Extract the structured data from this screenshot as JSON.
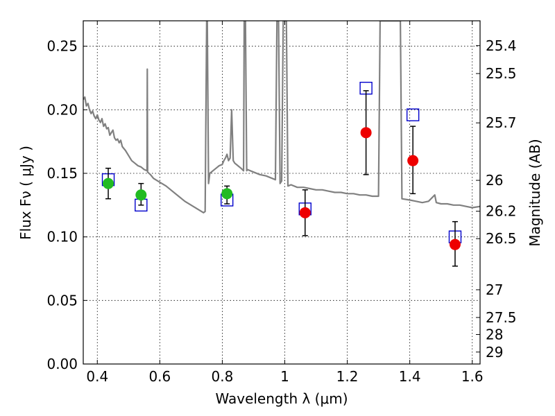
{
  "chart_data": {
    "type": "scatter",
    "title": "",
    "xlabel": "Wavelength  λ (μm)",
    "ylabel": "Flux  Fν  ( μJy )",
    "ylabel_right": "Magnitude (AB)",
    "xlim": [
      0.355,
      1.625
    ],
    "ylim": [
      0.0,
      0.27
    ],
    "grid": true,
    "x_ticks": [
      {
        "value": 0.4,
        "label": "0.4"
      },
      {
        "value": 0.6,
        "label": "0.6"
      },
      {
        "value": 0.8,
        "label": "0.8"
      },
      {
        "value": 1.0,
        "label": "1"
      },
      {
        "value": 1.2,
        "label": "1.2"
      },
      {
        "value": 1.4,
        "label": "1.4"
      },
      {
        "value": 1.6,
        "label": "1.6"
      }
    ],
    "y_ticks": [
      {
        "value": 0.0,
        "label": "0.00"
      },
      {
        "value": 0.05,
        "label": "0.05"
      },
      {
        "value": 0.1,
        "label": "0.10"
      },
      {
        "value": 0.15,
        "label": "0.15"
      },
      {
        "value": 0.2,
        "label": "0.20"
      },
      {
        "value": 0.25,
        "label": "0.25"
      }
    ],
    "right_ticks": [
      {
        "flux": 0.2505,
        "label": "25.4"
      },
      {
        "flux": 0.2285,
        "label": "25.5"
      },
      {
        "flux": 0.1897,
        "label": "25.7"
      },
      {
        "flux": 0.1445,
        "label": "26"
      },
      {
        "flux": 0.1202,
        "label": "26.2"
      },
      {
        "flux": 0.0986,
        "label": "26.5"
      },
      {
        "flux": 0.0584,
        "label": "27"
      },
      {
        "flux": 0.0366,
        "label": "27.5"
      },
      {
        "flux": 0.0232,
        "label": "28"
      },
      {
        "flux": 0.0094,
        "label": "29"
      }
    ],
    "series": [
      {
        "kind": "line",
        "color": "#808080",
        "points": [
          [
            0.355,
            0.208
          ],
          [
            0.36,
            0.21
          ],
          [
            0.365,
            0.203
          ],
          [
            0.37,
            0.205
          ],
          [
            0.375,
            0.2
          ],
          [
            0.38,
            0.197
          ],
          [
            0.385,
            0.199
          ],
          [
            0.39,
            0.195
          ],
          [
            0.395,
            0.193
          ],
          [
            0.4,
            0.196
          ],
          [
            0.405,
            0.192
          ],
          [
            0.41,
            0.19
          ],
          [
            0.415,
            0.193
          ],
          [
            0.42,
            0.187
          ],
          [
            0.425,
            0.189
          ],
          [
            0.43,
            0.185
          ],
          [
            0.435,
            0.186
          ],
          [
            0.44,
            0.18
          ],
          [
            0.445,
            0.182
          ],
          [
            0.45,
            0.184
          ],
          [
            0.455,
            0.178
          ],
          [
            0.46,
            0.176
          ],
          [
            0.465,
            0.177
          ],
          [
            0.47,
            0.174
          ],
          [
            0.475,
            0.176
          ],
          [
            0.48,
            0.171
          ],
          [
            0.49,
            0.168
          ],
          [
            0.5,
            0.164
          ],
          [
            0.51,
            0.16
          ],
          [
            0.52,
            0.158
          ],
          [
            0.53,
            0.156
          ],
          [
            0.54,
            0.155
          ],
          [
            0.55,
            0.153
          ],
          [
            0.559,
            0.152
          ],
          [
            0.56,
            0.232
          ],
          [
            0.561,
            0.151
          ],
          [
            0.57,
            0.149
          ],
          [
            0.58,
            0.146
          ],
          [
            0.6,
            0.143
          ],
          [
            0.62,
            0.14
          ],
          [
            0.64,
            0.136
          ],
          [
            0.66,
            0.132
          ],
          [
            0.68,
            0.128
          ],
          [
            0.7,
            0.125
          ],
          [
            0.72,
            0.122
          ],
          [
            0.74,
            0.119
          ],
          [
            0.745,
            0.12
          ],
          [
            0.75,
            0.27
          ],
          [
            0.752,
            0.27
          ],
          [
            0.756,
            0.142
          ],
          [
            0.76,
            0.15
          ],
          [
            0.77,
            0.152
          ],
          [
            0.78,
            0.154
          ],
          [
            0.79,
            0.156
          ],
          [
            0.8,
            0.157
          ],
          [
            0.805,
            0.16
          ],
          [
            0.81,
            0.162
          ],
          [
            0.815,
            0.165
          ],
          [
            0.82,
            0.16
          ],
          [
            0.825,
            0.162
          ],
          [
            0.83,
            0.2
          ],
          [
            0.835,
            0.16
          ],
          [
            0.84,
            0.158
          ],
          [
            0.85,
            0.156
          ],
          [
            0.86,
            0.154
          ],
          [
            0.868,
            0.152
          ],
          [
            0.87,
            0.27
          ],
          [
            0.874,
            0.27
          ],
          [
            0.878,
            0.152
          ],
          [
            0.88,
            0.153
          ],
          [
            0.9,
            0.151
          ],
          [
            0.92,
            0.149
          ],
          [
            0.94,
            0.148
          ],
          [
            0.96,
            0.146
          ],
          [
            0.97,
            0.145
          ],
          [
            0.975,
            0.27
          ],
          [
            0.98,
            0.27
          ],
          [
            0.985,
            0.142
          ],
          [
            0.99,
            0.144
          ],
          [
            0.995,
            0.27
          ],
          [
            1.0,
            0.27
          ],
          [
            1.005,
            0.27
          ],
          [
            1.01,
            0.14
          ],
          [
            1.02,
            0.141
          ],
          [
            1.04,
            0.139
          ],
          [
            1.06,
            0.139
          ],
          [
            1.08,
            0.138
          ],
          [
            1.1,
            0.137
          ],
          [
            1.12,
            0.137
          ],
          [
            1.14,
            0.136
          ],
          [
            1.16,
            0.135
          ],
          [
            1.18,
            0.135
          ],
          [
            1.2,
            0.134
          ],
          [
            1.22,
            0.134
          ],
          [
            1.24,
            0.133
          ],
          [
            1.26,
            0.133
          ],
          [
            1.28,
            0.132
          ],
          [
            1.3,
            0.132
          ],
          [
            1.305,
            0.27
          ],
          [
            1.37,
            0.27
          ],
          [
            1.375,
            0.13
          ],
          [
            1.4,
            0.129
          ],
          [
            1.42,
            0.128
          ],
          [
            1.44,
            0.127
          ],
          [
            1.46,
            0.128
          ],
          [
            1.48,
            0.133
          ],
          [
            1.485,
            0.127
          ],
          [
            1.5,
            0.126
          ],
          [
            1.52,
            0.126
          ],
          [
            1.54,
            0.125
          ],
          [
            1.56,
            0.125
          ],
          [
            1.58,
            0.124
          ],
          [
            1.6,
            0.123
          ],
          [
            1.625,
            0.124
          ]
        ]
      },
      {
        "kind": "squares",
        "color": "#0000cc",
        "points": [
          [
            0.435,
            0.145
          ],
          [
            0.54,
            0.125
          ],
          [
            0.815,
            0.129
          ],
          [
            1.065,
            0.122
          ],
          [
            1.26,
            0.217
          ],
          [
            1.41,
            0.196
          ],
          [
            1.545,
            0.1
          ]
        ]
      },
      {
        "kind": "points",
        "color": "#22bb22",
        "points": [
          {
            "x": 0.435,
            "y": 0.142,
            "ylo": 0.13,
            "yhi": 0.154
          },
          {
            "x": 0.54,
            "y": 0.133,
            "ylo": 0.125,
            "yhi": 0.142
          },
          {
            "x": 0.815,
            "y": 0.134,
            "ylo": 0.126,
            "yhi": 0.14
          }
        ]
      },
      {
        "kind": "points",
        "color": "#ee0000",
        "points": [
          {
            "x": 1.065,
            "y": 0.119,
            "ylo": 0.101,
            "yhi": 0.137
          },
          {
            "x": 1.26,
            "y": 0.182,
            "ylo": 0.149,
            "yhi": 0.215
          },
          {
            "x": 1.41,
            "y": 0.16,
            "ylo": 0.134,
            "yhi": 0.187
          },
          {
            "x": 1.545,
            "y": 0.094,
            "ylo": 0.077,
            "yhi": 0.112
          }
        ]
      }
    ]
  }
}
